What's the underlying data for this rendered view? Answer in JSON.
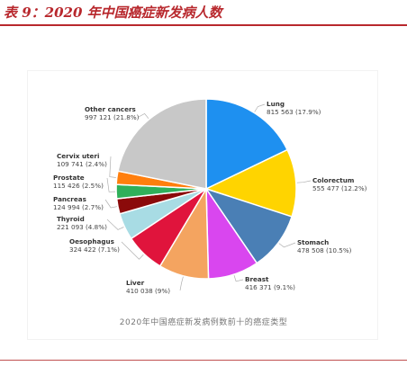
{
  "header": {
    "title": "表 9：2020 年中国癌症新发病人数"
  },
  "colors": {
    "title_red": "#b8282d"
  },
  "chart_data": {
    "type": "pie",
    "title": "2020年中国癌症新发病例数前十的癌症类型",
    "start_angle_deg": 0,
    "direction": "clockwise",
    "legend": "none",
    "slices": [
      {
        "name": "Lung",
        "value": 815563,
        "value_text": "815 563",
        "percent_text": "17.9%",
        "color": "#1e90f0"
      },
      {
        "name": "Colorectum",
        "value": 555477,
        "value_text": "555 477",
        "percent_text": "12.2%",
        "color": "#ffd400"
      },
      {
        "name": "Stomach",
        "value": 478508,
        "value_text": "478 508",
        "percent_text": "10.5%",
        "color": "#4a7fb5"
      },
      {
        "name": "Breast",
        "value": 416371,
        "value_text": "416 371",
        "percent_text": "9.1%",
        "color": "#d946ef"
      },
      {
        "name": "Liver",
        "value": 410038,
        "value_text": "410 038",
        "percent_text": "9%",
        "color": "#f4a460"
      },
      {
        "name": "Oesophagus",
        "value": 324422,
        "value_text": "324 422",
        "percent_text": "7.1%",
        "color": "#e0143c"
      },
      {
        "name": "Thyroid",
        "value": 221093,
        "value_text": "221 093",
        "percent_text": "4.8%",
        "color": "#a8dce4"
      },
      {
        "name": "Pancreas",
        "value": 124994,
        "value_text": "124 994",
        "percent_text": "2.7%",
        "color": "#8b0a0a"
      },
      {
        "name": "Prostate",
        "value": 115426,
        "value_text": "115 426",
        "percent_text": "2.5%",
        "color": "#2fb05a"
      },
      {
        "name": "Cervix uteri",
        "value": 109741,
        "value_text": "109 741",
        "percent_text": "2.4%",
        "color": "#ff7f0e"
      },
      {
        "name": "Other cancers",
        "value": 997121,
        "value_text": "997 121",
        "percent_text": "21.8%",
        "color": "#c8c8c8"
      }
    ]
  }
}
